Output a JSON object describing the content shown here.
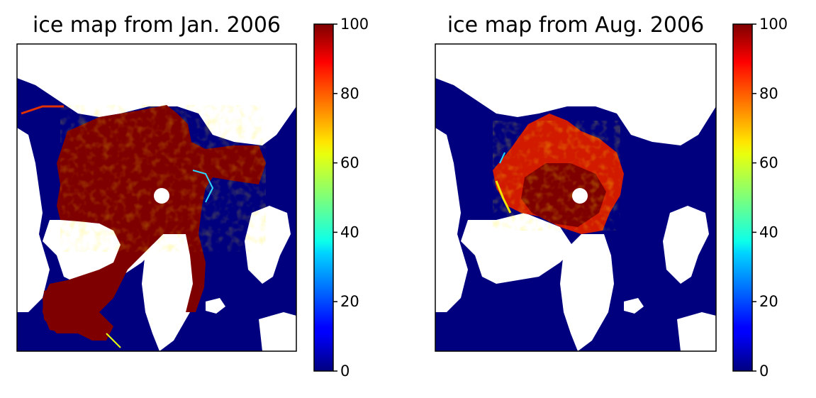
{
  "chart_data": [
    {
      "type": "heatmap",
      "title": "ice map from Jan. 2006",
      "colormap": "jet",
      "colorbar": {
        "ticks": [
          0,
          20,
          40,
          60,
          80,
          100
        ],
        "range": [
          0,
          100
        ]
      },
      "x_ticks_shown": false,
      "y_ticks_shown": false,
      "pole_hole": true
    },
    {
      "type": "heatmap",
      "title": "ice map from Aug. 2006",
      "colormap": "jet",
      "colorbar": {
        "ticks": [
          0,
          20,
          40,
          60,
          80,
          100
        ],
        "range": [
          0,
          100
        ]
      },
      "x_ticks_shown": false,
      "y_ticks_shown": false,
      "pole_hole": true
    }
  ],
  "colors": {
    "ocean_no_ice": "#00007f",
    "land": "#ffffff",
    "full_ice": "#7f0000",
    "summer_ice": "#d11a00"
  }
}
